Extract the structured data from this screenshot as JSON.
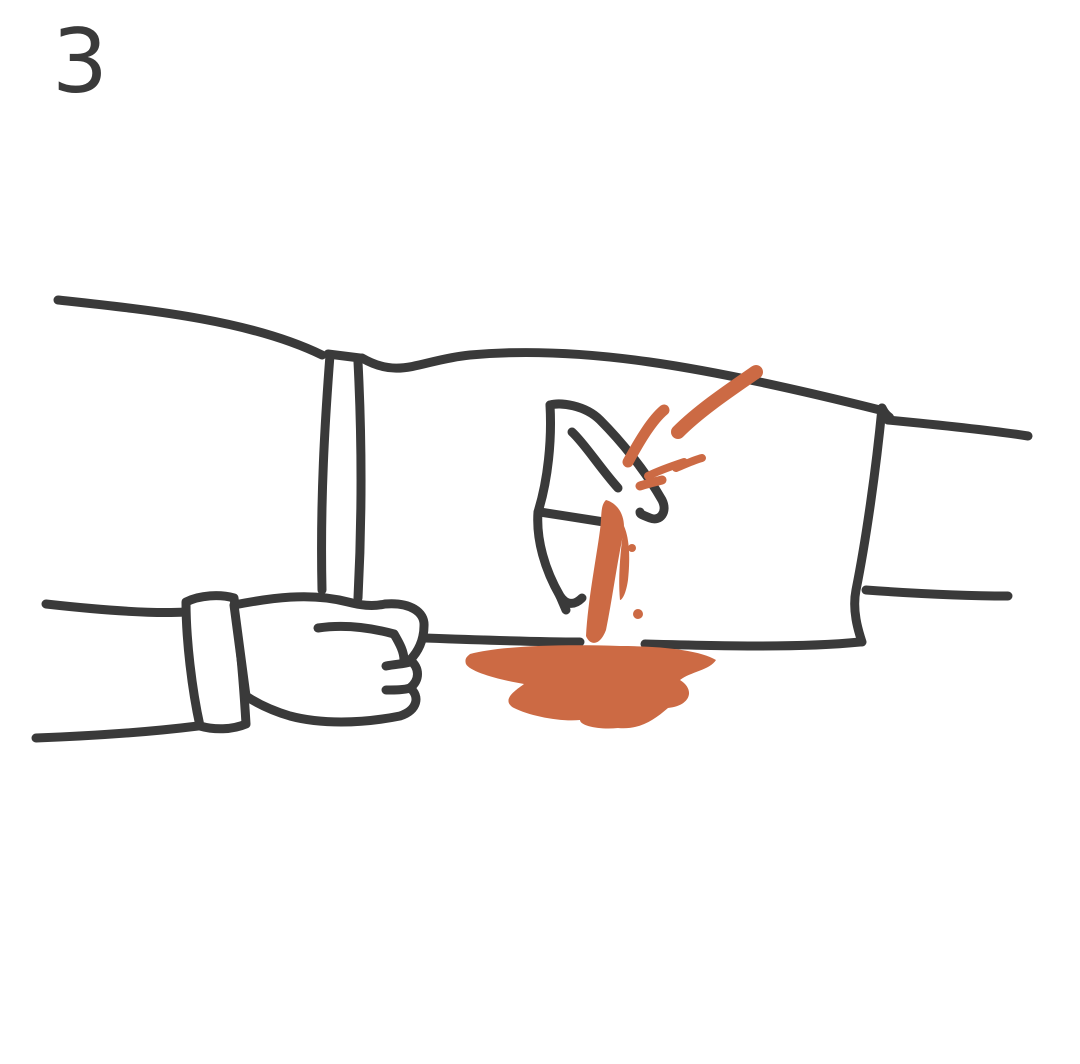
{
  "step": {
    "number": "3"
  },
  "illustration": {
    "subject": "bandage-on-forearm",
    "colors": {
      "ink": "#3a3a3a",
      "blood": "#cc6a44",
      "background": "#ffffff"
    }
  }
}
